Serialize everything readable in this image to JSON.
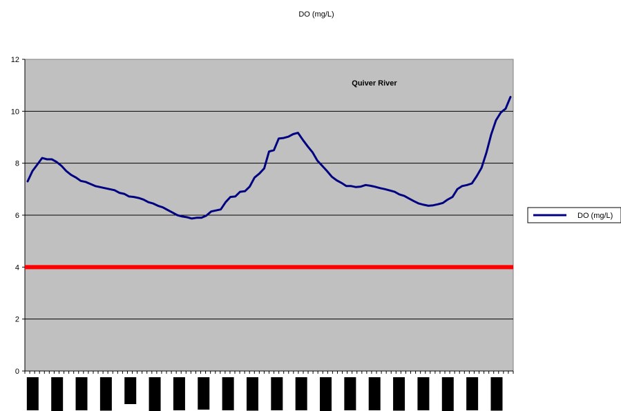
{
  "chart_data": {
    "type": "line",
    "title": "DO (mg/L)",
    "annotation": "Quiver River",
    "xlabel": "",
    "ylabel": "",
    "ylim": [
      0,
      12
    ],
    "yticks": [
      "0",
      "2",
      "4",
      "6",
      "8",
      "10",
      "12"
    ],
    "grid": "horizontal",
    "legend_position": "right",
    "plot_background": "#c0c0c0",
    "threshold": {
      "value": 4,
      "color": "#ff0000"
    },
    "series": [
      {
        "name": "DO (mg/L)",
        "color": "#000080",
        "values": [
          7.3,
          7.7,
          7.95,
          8.2,
          8.15,
          8.15,
          8.05,
          7.9,
          7.7,
          7.55,
          7.45,
          7.32,
          7.28,
          7.2,
          7.12,
          7.08,
          7.04,
          7.0,
          6.96,
          6.86,
          6.82,
          6.72,
          6.7,
          6.66,
          6.6,
          6.5,
          6.45,
          6.36,
          6.3,
          6.2,
          6.1,
          6.0,
          5.95,
          5.92,
          5.87,
          5.9,
          5.9,
          5.98,
          6.14,
          6.18,
          6.22,
          6.5,
          6.7,
          6.72,
          6.9,
          6.92,
          7.1,
          7.45,
          7.6,
          7.8,
          8.45,
          8.5,
          8.95,
          8.97,
          9.02,
          9.12,
          9.17,
          8.9,
          8.65,
          8.42,
          8.1,
          7.9,
          7.7,
          7.48,
          7.34,
          7.24,
          7.12,
          7.12,
          7.08,
          7.1,
          7.16,
          7.13,
          7.09,
          7.04,
          7.0,
          6.95,
          6.9,
          6.8,
          6.74,
          6.64,
          6.54,
          6.45,
          6.4,
          6.36,
          6.38,
          6.42,
          6.47,
          6.6,
          6.7,
          7.0,
          7.12,
          7.16,
          7.22,
          7.5,
          7.82,
          8.4,
          9.1,
          9.65,
          9.95,
          10.1,
          10.55
        ]
      }
    ],
    "x_category_count": 20
  }
}
